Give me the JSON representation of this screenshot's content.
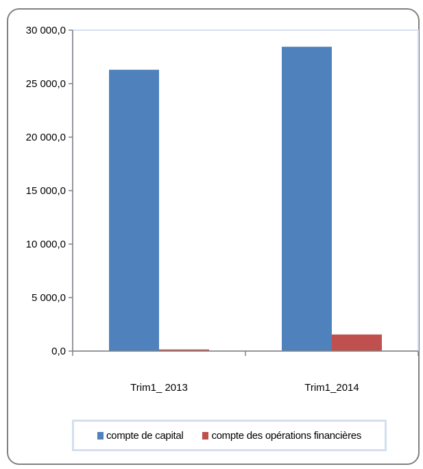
{
  "chart_data": {
    "type": "bar",
    "categories": [
      "Trim1_ 2013",
      "Trim1_2014"
    ],
    "series": [
      {
        "name": "compte de capital",
        "color": "#4f81bd",
        "values": [
          26300,
          28450
        ]
      },
      {
        "name": "compte des opérations financières",
        "color": "#c0504d",
        "values": [
          150,
          1550
        ]
      }
    ],
    "ylim": [
      0,
      30000
    ],
    "yticks": [
      0,
      5000,
      10000,
      15000,
      20000,
      25000,
      30000
    ],
    "ytick_labels": [
      "0,0",
      "5 000,0",
      "10 000,0",
      "15 000,0",
      "20 000,0",
      "25 000,0",
      "30 000,0"
    ],
    "grid": false,
    "legend_position": "bottom"
  }
}
